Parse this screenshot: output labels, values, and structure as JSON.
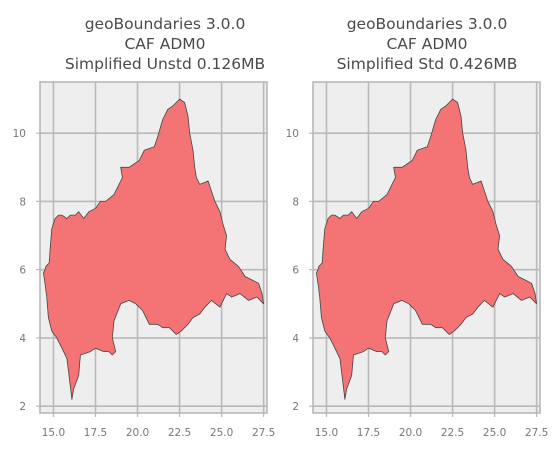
{
  "chart_data": [
    {
      "type": "map",
      "title": [
        "geoBoundaries 3.0.0",
        "CAF ADM0",
        "Simplified Unstd 0.126MB"
      ],
      "xlim": [
        14.2,
        27.7
      ],
      "ylim": [
        1.8,
        11.5
      ],
      "xticks": [
        15.0,
        17.5,
        20.0,
        22.5,
        25.0,
        27.5
      ],
      "xtick_labels": [
        "15.0",
        "17.5",
        "20.0",
        "22.5",
        "25.0",
        "27.5"
      ],
      "yticks": [
        2,
        4,
        6,
        8,
        10
      ],
      "ytick_labels": [
        "2",
        "4",
        "6",
        "8",
        "10"
      ],
      "grid": true,
      "region": {
        "name": "CAF",
        "fill": "#f47475",
        "boundary": [
          [
            14.5,
            6.0
          ],
          [
            14.55,
            6.1
          ],
          [
            14.75,
            6.2
          ],
          [
            14.8,
            6.6
          ],
          [
            14.9,
            7.2
          ],
          [
            15.1,
            7.5
          ],
          [
            15.3,
            7.6
          ],
          [
            15.5,
            7.6
          ],
          [
            15.8,
            7.5
          ],
          [
            16.0,
            7.6
          ],
          [
            16.3,
            7.6
          ],
          [
            16.5,
            7.7
          ],
          [
            16.8,
            7.5
          ],
          [
            17.1,
            7.7
          ],
          [
            17.5,
            7.8
          ],
          [
            17.8,
            8.0
          ],
          [
            18.1,
            8.0
          ],
          [
            18.6,
            8.2
          ],
          [
            19.1,
            8.7
          ],
          [
            19.0,
            9.0
          ],
          [
            19.5,
            9.0
          ],
          [
            20.1,
            9.2
          ],
          [
            20.4,
            9.5
          ],
          [
            21.0,
            9.6
          ],
          [
            21.2,
            9.9
          ],
          [
            21.5,
            10.4
          ],
          [
            21.8,
            10.7
          ],
          [
            22.1,
            10.8
          ],
          [
            22.5,
            11.0
          ],
          [
            22.8,
            10.9
          ],
          [
            23.0,
            10.5
          ],
          [
            23.1,
            10.0
          ],
          [
            23.3,
            9.5
          ],
          [
            23.4,
            9.0
          ],
          [
            23.5,
            8.7
          ],
          [
            23.7,
            8.5
          ],
          [
            24.2,
            8.6
          ],
          [
            24.4,
            8.3
          ],
          [
            24.6,
            8.0
          ],
          [
            24.9,
            7.7
          ],
          [
            25.1,
            7.3
          ],
          [
            25.3,
            7.0
          ],
          [
            25.2,
            6.6
          ],
          [
            25.5,
            6.3
          ],
          [
            26.0,
            6.1
          ],
          [
            26.4,
            5.8
          ],
          [
            26.8,
            5.7
          ],
          [
            27.2,
            5.6
          ],
          [
            27.4,
            5.3
          ],
          [
            27.5,
            5.0
          ],
          [
            27.1,
            5.2
          ],
          [
            26.6,
            5.1
          ],
          [
            26.1,
            5.3
          ],
          [
            25.6,
            5.2
          ],
          [
            25.3,
            5.3
          ],
          [
            24.9,
            4.9
          ],
          [
            24.4,
            5.1
          ],
          [
            24.0,
            4.9
          ],
          [
            23.7,
            4.7
          ],
          [
            23.3,
            4.6
          ],
          [
            23.0,
            4.4
          ],
          [
            22.6,
            4.2
          ],
          [
            22.3,
            4.1
          ],
          [
            21.9,
            4.3
          ],
          [
            21.5,
            4.3
          ],
          [
            21.2,
            4.4
          ],
          [
            20.7,
            4.4
          ],
          [
            20.3,
            4.8
          ],
          [
            19.9,
            5.0
          ],
          [
            19.5,
            5.1
          ],
          [
            19.0,
            5.0
          ],
          [
            18.6,
            4.5
          ],
          [
            18.5,
            4.0
          ],
          [
            18.7,
            3.6
          ],
          [
            18.5,
            3.5
          ],
          [
            18.3,
            3.6
          ],
          [
            18.0,
            3.6
          ],
          [
            17.5,
            3.7
          ],
          [
            17.2,
            3.6
          ],
          [
            16.6,
            3.5
          ],
          [
            16.5,
            2.9
          ],
          [
            16.2,
            2.5
          ],
          [
            16.1,
            2.2
          ],
          [
            15.9,
            3.0
          ],
          [
            15.8,
            3.4
          ],
          [
            15.5,
            3.7
          ],
          [
            15.2,
            4.0
          ],
          [
            14.9,
            4.2
          ],
          [
            14.7,
            4.6
          ],
          [
            14.6,
            5.2
          ],
          [
            14.5,
            5.6
          ],
          [
            14.4,
            5.9
          ]
        ]
      }
    },
    {
      "type": "map",
      "title": [
        "geoBoundaries 3.0.0",
        "CAF ADM0",
        "Simplified Std 0.426MB"
      ],
      "xlim": [
        14.2,
        27.7
      ],
      "ylim": [
        1.8,
        11.5
      ],
      "xticks": [
        15.0,
        17.5,
        20.0,
        22.5,
        25.0,
        27.5
      ],
      "xtick_labels": [
        "15.0",
        "17.5",
        "20.0",
        "22.5",
        "25.0",
        "27.5"
      ],
      "yticks": [
        2,
        4,
        6,
        8,
        10
      ],
      "ytick_labels": [
        "2",
        "4",
        "6",
        "8",
        "10"
      ],
      "grid": true,
      "region": {
        "name": "CAF",
        "fill": "#f47475",
        "boundary": [
          [
            14.5,
            6.0
          ],
          [
            14.55,
            6.1
          ],
          [
            14.75,
            6.2
          ],
          [
            14.8,
            6.6
          ],
          [
            14.9,
            7.2
          ],
          [
            15.1,
            7.5
          ],
          [
            15.3,
            7.6
          ],
          [
            15.5,
            7.6
          ],
          [
            15.8,
            7.5
          ],
          [
            16.0,
            7.6
          ],
          [
            16.3,
            7.6
          ],
          [
            16.5,
            7.7
          ],
          [
            16.8,
            7.5
          ],
          [
            17.1,
            7.7
          ],
          [
            17.5,
            7.8
          ],
          [
            17.8,
            8.0
          ],
          [
            18.1,
            8.0
          ],
          [
            18.6,
            8.2
          ],
          [
            19.1,
            8.7
          ],
          [
            19.0,
            9.0
          ],
          [
            19.5,
            9.0
          ],
          [
            20.1,
            9.2
          ],
          [
            20.4,
            9.5
          ],
          [
            21.0,
            9.6
          ],
          [
            21.2,
            9.9
          ],
          [
            21.5,
            10.4
          ],
          [
            21.8,
            10.7
          ],
          [
            22.1,
            10.8
          ],
          [
            22.5,
            11.0
          ],
          [
            22.8,
            10.9
          ],
          [
            23.0,
            10.5
          ],
          [
            23.1,
            10.0
          ],
          [
            23.3,
            9.5
          ],
          [
            23.4,
            9.0
          ],
          [
            23.5,
            8.7
          ],
          [
            23.7,
            8.5
          ],
          [
            24.2,
            8.6
          ],
          [
            24.4,
            8.3
          ],
          [
            24.6,
            8.0
          ],
          [
            24.9,
            7.7
          ],
          [
            25.1,
            7.3
          ],
          [
            25.3,
            7.0
          ],
          [
            25.2,
            6.6
          ],
          [
            25.5,
            6.3
          ],
          [
            26.0,
            6.1
          ],
          [
            26.4,
            5.8
          ],
          [
            26.8,
            5.7
          ],
          [
            27.2,
            5.6
          ],
          [
            27.4,
            5.3
          ],
          [
            27.5,
            5.0
          ],
          [
            27.1,
            5.2
          ],
          [
            26.6,
            5.1
          ],
          [
            26.1,
            5.3
          ],
          [
            25.6,
            5.2
          ],
          [
            25.3,
            5.3
          ],
          [
            24.9,
            4.9
          ],
          [
            24.4,
            5.1
          ],
          [
            24.0,
            4.9
          ],
          [
            23.7,
            4.7
          ],
          [
            23.3,
            4.6
          ],
          [
            23.0,
            4.4
          ],
          [
            22.6,
            4.2
          ],
          [
            22.3,
            4.1
          ],
          [
            21.9,
            4.3
          ],
          [
            21.5,
            4.3
          ],
          [
            21.2,
            4.4
          ],
          [
            20.7,
            4.4
          ],
          [
            20.3,
            4.8
          ],
          [
            19.9,
            5.0
          ],
          [
            19.5,
            5.1
          ],
          [
            19.0,
            5.0
          ],
          [
            18.6,
            4.5
          ],
          [
            18.5,
            4.0
          ],
          [
            18.7,
            3.6
          ],
          [
            18.5,
            3.5
          ],
          [
            18.3,
            3.6
          ],
          [
            18.0,
            3.6
          ],
          [
            17.5,
            3.7
          ],
          [
            17.2,
            3.6
          ],
          [
            16.6,
            3.5
          ],
          [
            16.5,
            2.9
          ],
          [
            16.2,
            2.5
          ],
          [
            16.1,
            2.2
          ],
          [
            15.9,
            3.0
          ],
          [
            15.8,
            3.4
          ],
          [
            15.5,
            3.7
          ],
          [
            15.2,
            4.0
          ],
          [
            14.9,
            4.2
          ],
          [
            14.7,
            4.6
          ],
          [
            14.6,
            5.2
          ],
          [
            14.5,
            5.6
          ],
          [
            14.4,
            5.9
          ]
        ]
      }
    }
  ]
}
